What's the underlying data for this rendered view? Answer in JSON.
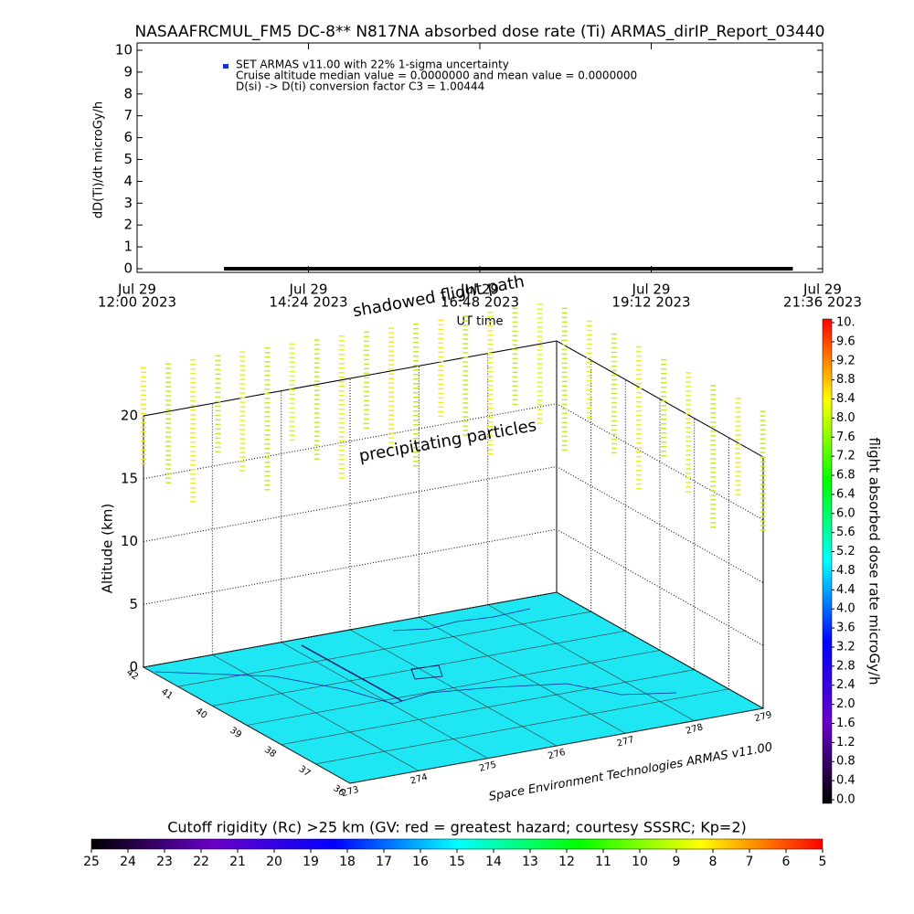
{
  "chart_data": [
    {
      "type": "line",
      "title": "NASAAFRCMUL_FM5 DC-8** N817NA absorbed dose rate (Ti) ARMAS_dirIP_Report_03440",
      "x": [
        "2023-07-29T13:13",
        "2023-07-29T21:11"
      ],
      "series": [
        {
          "name": "SET ARMAS v11.00 with 22% 1-sigma uncertainty",
          "color": "#1a2fd0",
          "line_color": "#000000",
          "values": [
            0,
            0
          ]
        }
      ],
      "annotations": [
        "Cruise altitude median value = 0.0000000 and mean value = 0.0000000",
        "D(si) -> D(ti) conversion factor C3 = 1.00444"
      ],
      "xlabel": "UT time",
      "ylabel": "dD(Ti)/dt microGy/h",
      "xlim": [
        "2023-07-29T12:00",
        "2023-07-29T21:36"
      ],
      "xticks": [
        {
          "value": "2023-07-29T12:00",
          "label": [
            "Jul 29",
            "12:00 2023"
          ]
        },
        {
          "value": "2023-07-29T14:24",
          "label": [
            "Jul 29",
            "14:24 2023"
          ]
        },
        {
          "value": "2023-07-29T16:48",
          "label": [
            "Jul 29",
            "16:48 2023"
          ]
        },
        {
          "value": "2023-07-29T19:12",
          "label": [
            "Jul 29",
            "19:12 2023"
          ]
        },
        {
          "value": "2023-07-29T21:36",
          "label": [
            "Jul 29",
            "21:36 2023"
          ]
        }
      ],
      "ylim": [
        0,
        10
      ],
      "yticks": [
        0,
        1,
        2,
        3,
        4,
        5,
        6,
        7,
        8,
        9,
        10
      ]
    },
    {
      "type": "surface3d",
      "annotations": [
        "shadowed flight path",
        "precipitating particles"
      ],
      "credit": "Space Environment Technologies ARMAS v11.00",
      "zlabel": "Altitude (km)",
      "xlim": [
        273,
        279
      ],
      "xticks": [
        273,
        274,
        275,
        276,
        277,
        278,
        279
      ],
      "ylim": [
        36,
        42
      ],
      "yticks": [
        42,
        41,
        40,
        39,
        38,
        37,
        36
      ],
      "zlim": [
        0,
        20
      ],
      "zticks": [
        0,
        5,
        10,
        15,
        20
      ],
      "floor_color": "#1ee6f2"
    },
    {
      "type": "colorbar",
      "orientation": "vertical",
      "label": "flight absorbed dose rate microGy/h",
      "ylim": [
        0,
        10
      ],
      "ticks": [
        {
          "value": 0,
          "label": "0.0"
        },
        0.4,
        0.8,
        1.2,
        1.6,
        {
          "value": 2,
          "label": "2.0"
        },
        2.4,
        2.8,
        3.2,
        3.6,
        {
          "value": 4,
          "label": "4.0"
        },
        4.4,
        4.8,
        5.2,
        5.6,
        {
          "value": 6,
          "label": "6.0"
        },
        6.4,
        6.8,
        7.2,
        7.6,
        {
          "value": 8,
          "label": "8.0"
        },
        8.4,
        8.8,
        9.2,
        9.6,
        {
          "value": 10,
          "label": "10."
        }
      ],
      "colors": [
        "#000000",
        "#6a00c8",
        "#0000ff",
        "#00ffff",
        "#00ff00",
        "#ffff00",
        "#ff0000"
      ]
    },
    {
      "type": "colorbar",
      "orientation": "horizontal",
      "label": "Cutoff rigidity (Rc) >25 km (GV: red = greatest hazard; courtesy SSSRC; Kp=2)",
      "xlim": [
        25,
        5
      ],
      "ticks": [
        25,
        24,
        23,
        22,
        21,
        20,
        19,
        18,
        17,
        16,
        15,
        14,
        13,
        12,
        11,
        10,
        9,
        8,
        7,
        6,
        5
      ],
      "colors": [
        "#000000",
        "#6a00c8",
        "#0000ff",
        "#00ffff",
        "#00ff00",
        "#ffff00",
        "#ff0000"
      ]
    }
  ]
}
